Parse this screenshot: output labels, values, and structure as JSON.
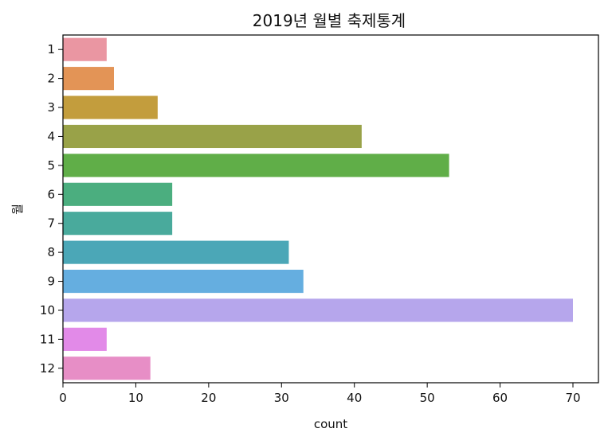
{
  "chart_data": {
    "type": "bar",
    "orientation": "horizontal",
    "title": "2019년 월별 축제통계",
    "xlabel": "count",
    "ylabel": "월",
    "categories": [
      "1",
      "2",
      "3",
      "4",
      "5",
      "6",
      "7",
      "8",
      "9",
      "10",
      "11",
      "12"
    ],
    "values": [
      6,
      7,
      13,
      41,
      53,
      15,
      15,
      31,
      33,
      70,
      6,
      12
    ],
    "colors": [
      "#ea96a2",
      "#e39456",
      "#c39d3d",
      "#99a248",
      "#60ae48",
      "#4bae7f",
      "#49aa9c",
      "#4ba7b7",
      "#65aee0",
      "#b6a6ec",
      "#e28ae8",
      "#e78ec6"
    ],
    "xlim": [
      0,
      73.5
    ],
    "xticks": [
      0,
      10,
      20,
      30,
      40,
      50,
      60,
      70
    ],
    "grid": false
  }
}
